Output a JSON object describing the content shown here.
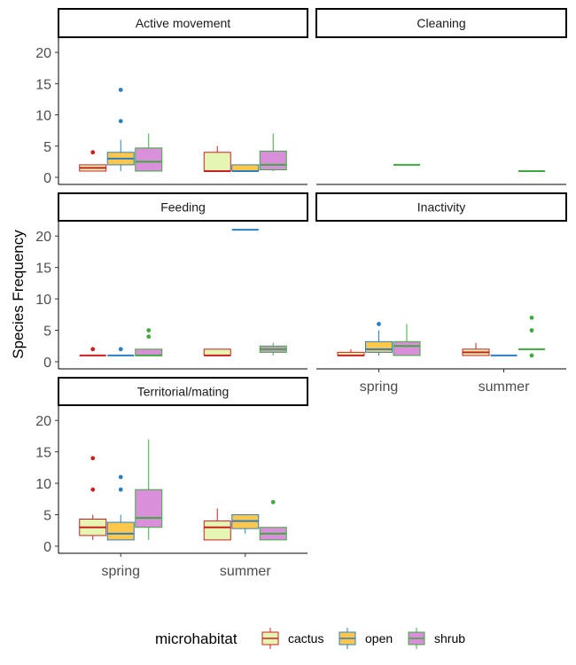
{
  "chart_data": {
    "type": "boxplot",
    "ylabel": "Species Frequency",
    "ylim": [
      0,
      22
    ],
    "y_ticks": [
      0,
      5,
      10,
      15,
      20
    ],
    "categories": [
      "spring",
      "summer"
    ],
    "legend": {
      "title": "microhabitat",
      "placement": "bottom",
      "items": [
        "cactus",
        "open",
        "shrub"
      ]
    },
    "colors": {
      "cactus": {
        "fill": "#e5f5b3",
        "line": "#cc1f1f"
      },
      "open": {
        "fill": "#ffc84a",
        "line": "#2b7fc0"
      },
      "shrub": {
        "fill": "#d98fd9",
        "line": "#3eaa3e"
      }
    },
    "panels": [
      {
        "title": "Active movement",
        "boxes": [
          {
            "season": "spring",
            "group": "cactus",
            "q1": 1,
            "median": 1.5,
            "q3": 2,
            "low": 1,
            "high": 2,
            "outliers": [
              4
            ]
          },
          {
            "season": "spring",
            "group": "open",
            "q1": 2,
            "median": 3,
            "q3": 4,
            "low": 1,
            "high": 6,
            "outliers": [
              9,
              14
            ]
          },
          {
            "season": "spring",
            "group": "shrub",
            "q1": 1,
            "median": 2.5,
            "q3": 4.7,
            "low": 1,
            "high": 7,
            "outliers": []
          },
          {
            "season": "summer",
            "group": "cactus",
            "q1": 1,
            "median": 1,
            "q3": 4,
            "low": 1,
            "high": 5,
            "outliers": []
          },
          {
            "season": "summer",
            "group": "open",
            "q1": 1,
            "median": 1,
            "q3": 2,
            "low": 1,
            "high": 2,
            "outliers": []
          },
          {
            "season": "summer",
            "group": "shrub",
            "q1": 1.2,
            "median": 2,
            "q3": 4.2,
            "low": 1,
            "high": 7,
            "outliers": []
          }
        ]
      },
      {
        "title": "Cleaning",
        "boxes": [
          {
            "season": "spring",
            "group": "shrub",
            "q1": 2,
            "median": 2,
            "q3": 2,
            "low": 2,
            "high": 2,
            "outliers": []
          },
          {
            "season": "summer",
            "group": "shrub",
            "q1": 1,
            "median": 1,
            "q3": 1,
            "low": 1,
            "high": 1,
            "outliers": []
          }
        ]
      },
      {
        "title": "Feeding",
        "boxes": [
          {
            "season": "spring",
            "group": "cactus",
            "q1": 1,
            "median": 1,
            "q3": 1,
            "low": 1,
            "high": 1,
            "outliers": [
              2
            ]
          },
          {
            "season": "spring",
            "group": "open",
            "q1": 1,
            "median": 1,
            "q3": 1,
            "low": 1,
            "high": 1,
            "outliers": [
              2
            ]
          },
          {
            "season": "spring",
            "group": "shrub",
            "q1": 1,
            "median": 1,
            "q3": 2,
            "low": 1,
            "high": 2,
            "outliers": [
              4,
              5
            ]
          },
          {
            "season": "summer",
            "group": "cactus",
            "q1": 1,
            "median": 1,
            "q3": 2,
            "low": 1,
            "high": 2,
            "outliers": []
          },
          {
            "season": "summer",
            "group": "open",
            "q1": 21,
            "median": 21,
            "q3": 21,
            "low": 21,
            "high": 21,
            "outliers": []
          },
          {
            "season": "summer",
            "group": "shrub",
            "q1": 1.5,
            "median": 2,
            "q3": 2.5,
            "low": 1,
            "high": 3,
            "outliers": []
          }
        ]
      },
      {
        "title": "Inactivity",
        "boxes": [
          {
            "season": "spring",
            "group": "cactus",
            "q1": 1,
            "median": 1,
            "q3": 1.5,
            "low": 1,
            "high": 2,
            "outliers": []
          },
          {
            "season": "spring",
            "group": "open",
            "q1": 1.5,
            "median": 2,
            "q3": 3.2,
            "low": 1,
            "high": 5,
            "outliers": [
              6
            ]
          },
          {
            "season": "spring",
            "group": "shrub",
            "q1": 1,
            "median": 2.5,
            "q3": 3.2,
            "low": 1,
            "high": 6,
            "outliers": []
          },
          {
            "season": "summer",
            "group": "cactus",
            "q1": 1,
            "median": 1.5,
            "q3": 2,
            "low": 1,
            "high": 3,
            "outliers": []
          },
          {
            "season": "summer",
            "group": "open",
            "q1": 1,
            "median": 1,
            "q3": 1,
            "low": 1,
            "high": 1,
            "outliers": []
          },
          {
            "season": "summer",
            "group": "shrub",
            "q1": 2,
            "median": 2,
            "q3": 2,
            "low": 2,
            "high": 2,
            "outliers": [
              1,
              5,
              7
            ]
          }
        ]
      },
      {
        "title": "Territorial/mating",
        "boxes": [
          {
            "season": "spring",
            "group": "cactus",
            "q1": 1.7,
            "median": 3,
            "q3": 4.3,
            "low": 1,
            "high": 5,
            "outliers": [
              9,
              14
            ]
          },
          {
            "season": "spring",
            "group": "open",
            "q1": 1,
            "median": 2,
            "q3": 3.8,
            "low": 1,
            "high": 5,
            "outliers": [
              9,
              11
            ]
          },
          {
            "season": "spring",
            "group": "shrub",
            "q1": 3,
            "median": 4.5,
            "q3": 9,
            "low": 1,
            "high": 17,
            "outliers": []
          },
          {
            "season": "summer",
            "group": "cactus",
            "q1": 1,
            "median": 3,
            "q3": 4,
            "low": 1,
            "high": 6,
            "outliers": []
          },
          {
            "season": "summer",
            "group": "open",
            "q1": 2.8,
            "median": 4,
            "q3": 5,
            "low": 2,
            "high": 5,
            "outliers": []
          },
          {
            "season": "summer",
            "group": "shrub",
            "q1": 1,
            "median": 2,
            "q3": 3,
            "low": 1,
            "high": 3,
            "outliers": [
              7
            ]
          }
        ]
      }
    ]
  }
}
